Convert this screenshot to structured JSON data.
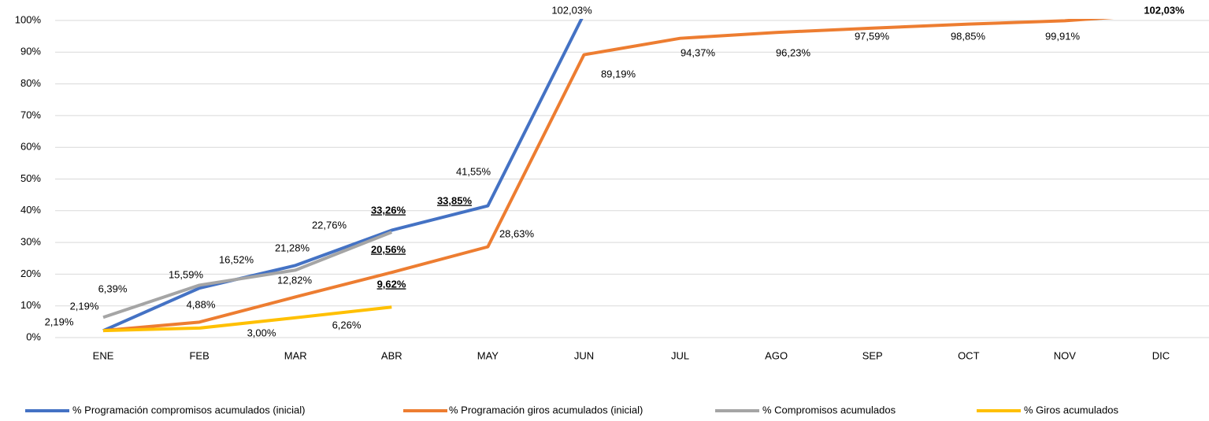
{
  "chart_data": {
    "type": "line",
    "categories": [
      "ENE",
      "FEB",
      "MAR",
      "ABR",
      "MAY",
      "JUN",
      "JUL",
      "AGO",
      "SEP",
      "OCT",
      "NOV",
      "DIC"
    ],
    "ylim": [
      0,
      100
    ],
    "yticks": [
      {
        "value": 0,
        "label": "0%"
      },
      {
        "value": 10,
        "label": "10%"
      },
      {
        "value": 20,
        "label": "20%"
      },
      {
        "value": 30,
        "label": "30%"
      },
      {
        "value": 40,
        "label": "40%"
      },
      {
        "value": 50,
        "label": "50%"
      },
      {
        "value": 60,
        "label": "60%"
      },
      {
        "value": 70,
        "label": "70%"
      },
      {
        "value": 80,
        "label": "80%"
      },
      {
        "value": 90,
        "label": "90%"
      },
      {
        "value": 100,
        "label": "100%"
      }
    ],
    "grid": true,
    "legend": "bottom",
    "series": [
      {
        "name": "% Programación compromisos acumulados (inicial)",
        "color": "#4472c4",
        "values": [
          2.19,
          15.59,
          22.76,
          33.85,
          41.55,
          102.03,
          null,
          null,
          null,
          null,
          null,
          null
        ],
        "value_labels": [
          "2,19%",
          "15,59%",
          "22,76%",
          "33,85%",
          "41,55%",
          "102,03%",
          null,
          null,
          null,
          null,
          null,
          null
        ]
      },
      {
        "name": "% Programación giros acumulados (inicial)",
        "color": "#ed7d31",
        "values": [
          2.19,
          4.88,
          12.82,
          20.56,
          28.63,
          89.19,
          94.37,
          96.23,
          97.59,
          98.85,
          99.91,
          102.03
        ],
        "value_labels": [
          null,
          "4,88%",
          "12,82%",
          "20,56%",
          "28,63%",
          "89,19%",
          "94,37%",
          "96,23%",
          "97,59%",
          "98,85%",
          "99,91%",
          "102,03%"
        ]
      },
      {
        "name": "% Compromisos acumulados",
        "color": "#a5a5a5",
        "values": [
          6.39,
          16.52,
          21.28,
          33.26,
          null,
          null,
          null,
          null,
          null,
          null,
          null,
          null
        ],
        "value_labels": [
          "6,39%",
          "16,52%",
          "21,28%",
          "33,26%",
          null,
          null,
          null,
          null,
          null,
          null,
          null,
          null
        ]
      },
      {
        "name": "% Giros acumulados",
        "color": "#ffc000",
        "values": [
          2.19,
          3.0,
          6.26,
          9.62,
          null,
          null,
          null,
          null,
          null,
          null,
          null,
          null
        ],
        "value_labels": [
          "2,19%",
          "3,00%",
          "6,26%",
          "9,62%",
          null,
          null,
          null,
          null,
          null,
          null,
          null,
          null
        ]
      }
    ]
  }
}
